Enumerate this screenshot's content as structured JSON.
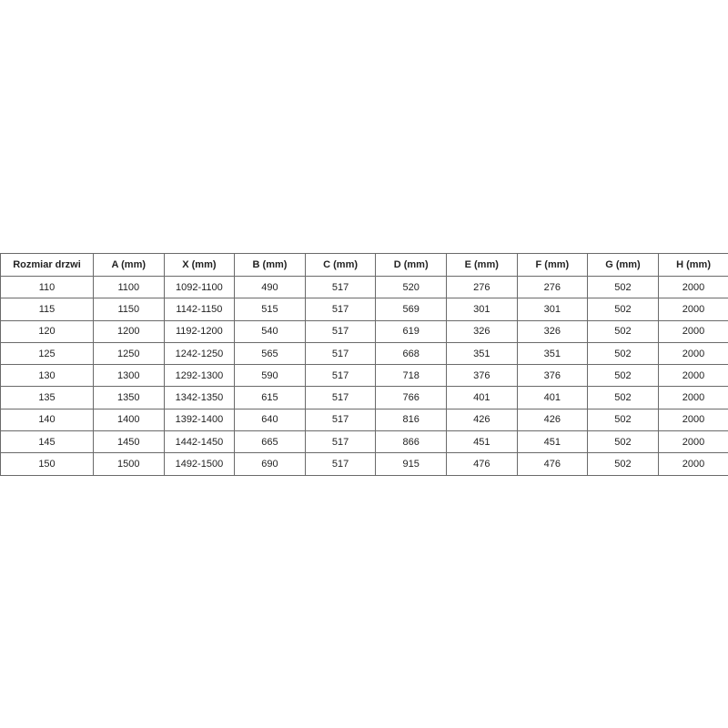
{
  "table": {
    "headers": [
      "Rozmiar drzwi",
      "A (mm)",
      "X (mm)",
      "B (mm)",
      "C (mm)",
      "D (mm)",
      "E (mm)",
      "F (mm)",
      "G (mm)",
      "H (mm)"
    ],
    "rows": [
      [
        "110",
        "1100",
        "1092-1100",
        "490",
        "517",
        "520",
        "276",
        "276",
        "502",
        "2000"
      ],
      [
        "115",
        "1150",
        "1142-1150",
        "515",
        "517",
        "569",
        "301",
        "301",
        "502",
        "2000"
      ],
      [
        "120",
        "1200",
        "1192-1200",
        "540",
        "517",
        "619",
        "326",
        "326",
        "502",
        "2000"
      ],
      [
        "125",
        "1250",
        "1242-1250",
        "565",
        "517",
        "668",
        "351",
        "351",
        "502",
        "2000"
      ],
      [
        "130",
        "1300",
        "1292-1300",
        "590",
        "517",
        "718",
        "376",
        "376",
        "502",
        "2000"
      ],
      [
        "135",
        "1350",
        "1342-1350",
        "615",
        "517",
        "766",
        "401",
        "401",
        "502",
        "2000"
      ],
      [
        "140",
        "1400",
        "1392-1400",
        "640",
        "517",
        "816",
        "426",
        "426",
        "502",
        "2000"
      ],
      [
        "145",
        "1450",
        "1442-1450",
        "665",
        "517",
        "866",
        "451",
        "451",
        "502",
        "2000"
      ],
      [
        "150",
        "1500",
        "1492-1500",
        "690",
        "517",
        "915",
        "476",
        "476",
        "502",
        "2000"
      ]
    ]
  }
}
